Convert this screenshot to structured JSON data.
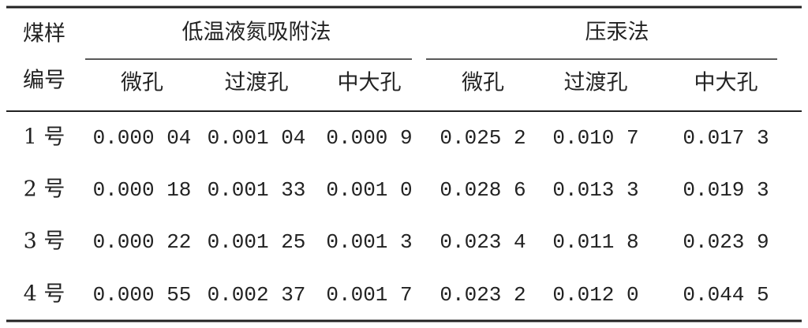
{
  "table": {
    "corner": [
      "煤样",
      "编号"
    ],
    "groups": [
      "低温液氮吸附法",
      "压汞法"
    ],
    "columns": [
      "微孔",
      "过渡孔",
      "中大孔",
      "微孔",
      "过渡孔",
      "中大孔"
    ],
    "rows": [
      [
        "1 号",
        "0.000 04",
        "0.001 04",
        "0.000 9",
        "0.025 2",
        "0.010 7",
        "0.017 3"
      ],
      [
        "2 号",
        "0.000 18",
        "0.001 33",
        "0.001 0",
        "0.028 6",
        "0.013 3",
        "0.019 3"
      ],
      [
        "3 号",
        "0.000 22",
        "0.001 25",
        "0.001 3",
        "0.023 4",
        "0.011 8",
        "0.023 9"
      ],
      [
        "4 号",
        "0.000 55",
        "0.002 37",
        "0.001 7",
        "0.023 2",
        "0.012 0",
        "0.044 5"
      ]
    ]
  }
}
